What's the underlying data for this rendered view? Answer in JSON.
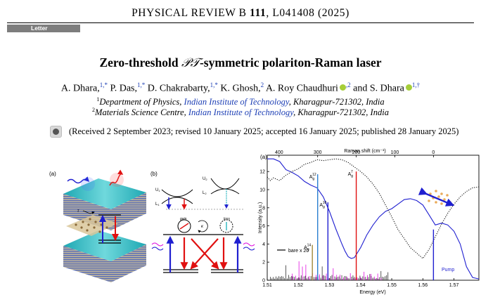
{
  "header": {
    "journal_prefix": "PHYSICAL REVIEW B ",
    "volume": "111",
    "citation": ", L041408 (2025)",
    "section_tag": "Letter"
  },
  "article": {
    "title_prefix": "Zero-threshold ",
    "title_symbol": "𝒫𝒯",
    "title_suffix": "-symmetric polariton-Raman laser",
    "authors": [
      {
        "name": "A. Dhara,",
        "sup": "1,*"
      },
      {
        "name": "P. Das,",
        "sup": "1,*"
      },
      {
        "name": "D. Chakrabarty,",
        "sup": "1,*"
      },
      {
        "name": "K. Ghosh,",
        "sup": "2"
      },
      {
        "name": "A. Roy Chaudhuri",
        "sup": ",2"
      },
      {
        "name": "and S. Dhara",
        "sup": "1,†"
      }
    ],
    "affiliations": [
      {
        "num": "1",
        "dept": "Department of Physics, ",
        "inst": "Indian Institute of Technology",
        "place": ", Kharagpur-721302, India"
      },
      {
        "num": "2",
        "dept": "Materials Science Centre, ",
        "inst": "Indian Institute of Technology",
        "place": ", Kharagpur-721302, India"
      }
    ],
    "received": "(Received 2 September 2023; revised 10 January 2025; accepted 16 January 2025; published 28 January 2025)"
  },
  "figure": {
    "panel_a_label": "(a)",
    "panel_b_label": "(b)",
    "panel_c_label": "(a)",
    "panel_b_labels": {
      "u1": "U",
      "l1": "L",
      "u2": "U",
      "l2": "L",
      "gain": "gain",
      "loss": "loss",
      "kappa": "κ",
      "gamma": "g",
      "sub1": "1",
      "sub2": "2"
    },
    "legend_label": "bare x 20",
    "pump_label": "Pump",
    "peak_labels": [
      {
        "main": "A",
        "sub": "g",
        "sup": "14"
      },
      {
        "main": "A",
        "sub": "g",
        "sup": "12"
      },
      {
        "main": "A",
        "sub": "g",
        "sup": "10"
      },
      {
        "main": "A",
        "sub": "g",
        "sup": "7"
      }
    ],
    "colors": {
      "blue": "#1f1fd0",
      "red": "#e01010",
      "teal": "#2bb6c0",
      "magenta": "#e010e0",
      "olive": "#a08a3a"
    }
  },
  "chart_data": {
    "type": "line",
    "xlabel": "Energy (eV)",
    "ylabel": "Intensity (a.u.)",
    "top_xlabel": "Raman shift (cm⁻¹)",
    "xlim": [
      1.51,
      1.578
    ],
    "ylim": [
      0,
      13.8
    ],
    "x_ticks": [
      1.51,
      1.52,
      1.53,
      1.54,
      1.55,
      1.56,
      1.57
    ],
    "x_tick_labels": [
      "1.51",
      "1.52",
      "1.53",
      "1.54",
      "1.55",
      "1.56",
      "1.57"
    ],
    "y_ticks": [
      0,
      2,
      4,
      6,
      8,
      10,
      12
    ],
    "top_ticks": [
      {
        "x": 1.5138,
        "label": "400"
      },
      {
        "x": 1.5262,
        "label": "300"
      },
      {
        "x": 1.5386,
        "label": "200"
      },
      {
        "x": 1.551,
        "label": "100"
      },
      {
        "x": 1.5634,
        "label": "0"
      }
    ],
    "series": [
      {
        "name": "",
        "color": "#1f1fd0",
        "style": "solid",
        "x": [
          1.51,
          1.512,
          1.514,
          1.516,
          1.518,
          1.52,
          1.522,
          1.524,
          1.526,
          1.528,
          1.53,
          1.532,
          1.534,
          1.535,
          1.536,
          1.537,
          1.538,
          1.54,
          1.542,
          1.544,
          1.546,
          1.548,
          1.55,
          1.552,
          1.554,
          1.556,
          1.558,
          1.56,
          1.562,
          1.564,
          1.566,
          1.568,
          1.57,
          1.572,
          1.574,
          1.576,
          1.578
        ],
        "y": [
          13.4,
          13.4,
          13.1,
          12.2,
          11.9,
          11.5,
          10.9,
          10.5,
          10.2,
          9.2,
          7.6,
          5.7,
          4.0,
          3.2,
          2.6,
          2.4,
          2.5,
          3.6,
          5.0,
          6.1,
          7.0,
          7.6,
          7.9,
          8.4,
          8.9,
          9.0,
          8.8,
          8.3,
          7.2,
          6.1,
          6.3,
          6.1,
          5.4,
          4.0,
          1.5,
          0.3,
          0.15
        ]
      },
      {
        "name": "",
        "color": "#111111",
        "style": "dotted",
        "x": [
          1.51,
          1.511,
          1.512,
          1.514,
          1.516,
          1.518,
          1.52,
          1.522,
          1.524,
          1.526,
          1.528,
          1.53,
          1.532,
          1.534,
          1.536,
          1.538,
          1.54,
          1.542,
          1.544,
          1.546,
          1.548,
          1.55,
          1.552,
          1.554,
          1.556,
          1.558,
          1.56,
          1.562,
          1.564,
          1.566,
          1.568,
          1.57,
          1.572,
          1.574,
          1.576,
          1.578
        ],
        "y": [
          11.4,
          11.0,
          11.3,
          11.0,
          11.6,
          12.0,
          12.3,
          12.8,
          13.0,
          13.3,
          13.2,
          13.3,
          13.4,
          13.3,
          13.0,
          12.5,
          12.0,
          11.4,
          10.6,
          9.6,
          8.3,
          7.0,
          5.6,
          4.6,
          3.6,
          3.0,
          2.4,
          3.4,
          4.8,
          6.2,
          7.4,
          8.4,
          9.2,
          9.8,
          10.2,
          10.3
        ]
      }
    ],
    "peaks": [
      {
        "x": 1.5245,
        "height": 3.9,
        "color": "#a08a3a",
        "label_index": 0
      },
      {
        "x": 1.5262,
        "height": 11.7,
        "color": "#2b7fd0",
        "label_index": 1
      },
      {
        "x": 1.5295,
        "height": 8.6,
        "color": "#1f1fd0",
        "label_index": 2
      },
      {
        "x": 1.5386,
        "height": 12.0,
        "color": "#e01010",
        "label_index": 3
      },
      {
        "x": 1.5634,
        "height": 5.6,
        "color": "#1f1fd0",
        "label_index": -1
      }
    ]
  }
}
